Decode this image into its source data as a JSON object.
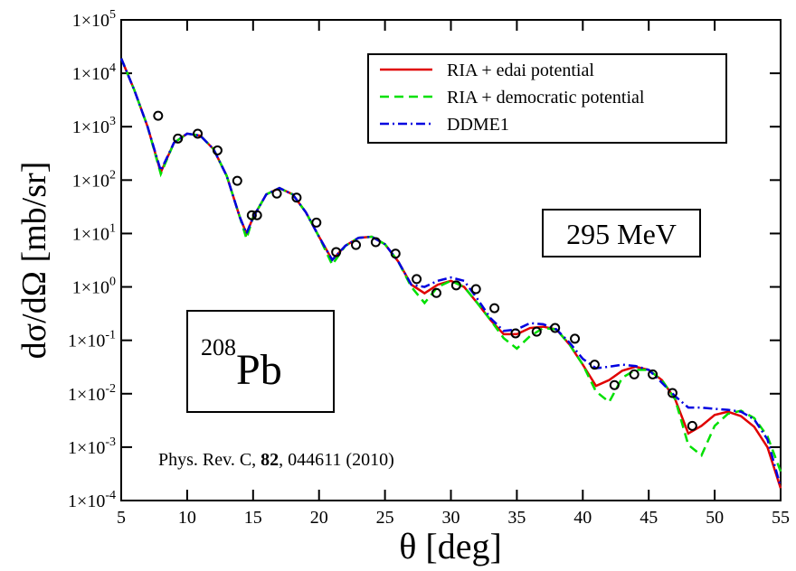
{
  "chart_data": {
    "type": "line",
    "y_label": "dσ/dΩ [mb/sr]",
    "x_label": "θ [deg]",
    "log_y": true,
    "xlim": [
      5,
      55
    ],
    "xticks": [
      5,
      10,
      15,
      20,
      25,
      30,
      35,
      40,
      45,
      50,
      55
    ],
    "ylim": [
      0.0001,
      100000
    ],
    "yticks": [
      {
        "value": 0.0001,
        "label": "1×10",
        "exponent": "-4"
      },
      {
        "value": 0.001,
        "label": "1×10",
        "exponent": "-3"
      },
      {
        "value": 0.01,
        "label": "1×10",
        "exponent": "-2"
      },
      {
        "value": 0.1,
        "label": "1×10",
        "exponent": "-1"
      },
      {
        "value": 1,
        "label": "1×10",
        "exponent": "0"
      },
      {
        "value": 10,
        "label": "1×10",
        "exponent": "1"
      },
      {
        "value": 100,
        "label": "1×10",
        "exponent": "2"
      },
      {
        "value": 1000,
        "label": "1×10",
        "exponent": "3"
      },
      {
        "value": 10000,
        "label": "1×10",
        "exponent": "4"
      },
      {
        "value": 100000,
        "label": "1×10",
        "exponent": "5"
      }
    ],
    "legend_position": "upper right",
    "x": [
      5,
      6,
      7,
      8,
      9,
      10,
      11,
      12,
      13,
      14,
      14.5,
      15,
      16,
      17,
      18,
      19,
      20,
      21,
      22,
      23,
      24,
      25,
      26,
      27,
      28,
      29,
      30,
      31,
      32,
      33,
      34,
      35,
      36,
      37,
      38,
      39,
      40,
      41,
      42,
      43,
      44,
      45,
      46,
      47,
      48,
      49,
      50,
      51,
      52,
      53,
      54,
      55
    ],
    "series": [
      {
        "name": "RIA + edai potential",
        "color": "#e00000",
        "dash": "solid",
        "values": [
          19000,
          4800,
          1000,
          140,
          500,
          740,
          680,
          380,
          120,
          20,
          10,
          20,
          54,
          71,
          54,
          25,
          8.7,
          3.2,
          5.9,
          8.3,
          8.7,
          6.3,
          3.0,
          1.1,
          0.76,
          1.1,
          1.3,
          1.0,
          0.5,
          0.24,
          0.13,
          0.13,
          0.17,
          0.18,
          0.16,
          0.083,
          0.035,
          0.014,
          0.018,
          0.027,
          0.032,
          0.028,
          0.018,
          0.0079,
          0.0018,
          0.0025,
          0.004,
          0.0046,
          0.0038,
          0.0024,
          0.001,
          0.00017
        ]
      },
      {
        "name": "RIA + democratic potential",
        "color": "#00e000",
        "dash": "dashed",
        "values": [
          19000,
          4800,
          1000,
          130,
          500,
          740,
          680,
          380,
          120,
          20,
          8,
          20,
          54,
          71,
          54,
          25,
          8.7,
          2.6,
          5.9,
          8.3,
          8.7,
          6.3,
          3.0,
          1.0,
          0.5,
          1.0,
          1.3,
          1.0,
          0.5,
          0.24,
          0.11,
          0.07,
          0.12,
          0.17,
          0.16,
          0.083,
          0.035,
          0.011,
          0.007,
          0.02,
          0.028,
          0.028,
          0.018,
          0.0079,
          0.0011,
          0.0007,
          0.0025,
          0.0042,
          0.0048,
          0.0035,
          0.0016,
          0.00035
        ]
      },
      {
        "name": "DDME1",
        "color": "#0000e0",
        "dash": "dashdot",
        "values": [
          19000,
          4800,
          1000,
          150,
          500,
          740,
          680,
          380,
          120,
          20,
          10,
          20,
          54,
          71,
          54,
          25,
          8.7,
          3.2,
          5.9,
          8.3,
          8.7,
          6.3,
          3.0,
          1.1,
          1.0,
          1.3,
          1.5,
          1.3,
          0.6,
          0.26,
          0.15,
          0.16,
          0.21,
          0.2,
          0.16,
          0.09,
          0.045,
          0.03,
          0.032,
          0.035,
          0.033,
          0.028,
          0.016,
          0.009,
          0.0055,
          0.0055,
          0.0052,
          0.005,
          0.0046,
          0.0033,
          0.0014,
          0.00018
        ]
      }
    ],
    "data_points": {
      "x": [
        7.8,
        9.3,
        10.8,
        12.3,
        13.8,
        14.9,
        15.3,
        16.8,
        18.3,
        19.8,
        21.3,
        22.8,
        24.3,
        25.8,
        27.4,
        28.9,
        30.4,
        31.9,
        33.3,
        34.9,
        36.5,
        37.9,
        39.4,
        40.9,
        42.4,
        43.9,
        45.3,
        46.8,
        48.3
      ],
      "values": [
        1600,
        600,
        740,
        360,
        97,
        22,
        22,
        56,
        47,
        16,
        4.5,
        6.1,
        6.9,
        4.2,
        1.4,
        0.77,
        1.07,
        0.91,
        0.4,
        0.135,
        0.145,
        0.17,
        0.107,
        0.035,
        0.0145,
        0.023,
        0.023,
        0.0103,
        0.0025
      ],
      "color": "#000000"
    },
    "energy_label": "295 MeV",
    "nucleus": {
      "mass": "208",
      "symbol": "Pb"
    },
    "citation": {
      "prefix": "Phys. Rev. C, ",
      "volume": "82",
      "suffix": ", 044611 (2010)"
    }
  }
}
